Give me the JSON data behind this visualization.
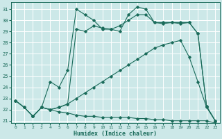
{
  "xlabel": "Humidex (Indice chaleur)",
  "bg_color": "#cce8e8",
  "grid_color": "#ffffff",
  "line_color": "#1a6b5a",
  "xlim": [
    -0.5,
    23.5
  ],
  "ylim": [
    20.8,
    31.6
  ],
  "yticks": [
    21,
    22,
    23,
    24,
    25,
    26,
    27,
    28,
    29,
    30,
    31
  ],
  "xticks": [
    0,
    1,
    2,
    3,
    4,
    5,
    6,
    7,
    8,
    9,
    10,
    11,
    12,
    13,
    14,
    15,
    16,
    17,
    18,
    19,
    20,
    21,
    22,
    23
  ],
  "series": [
    {
      "x": [
        0,
        1,
        2,
        3,
        4,
        5,
        6,
        7,
        8,
        9,
        10,
        11,
        12,
        13,
        14,
        15,
        16,
        17,
        18,
        19,
        20,
        21,
        22,
        23
      ],
      "y": [
        22.8,
        22.2,
        21.4,
        22.2,
        24.5,
        24.0,
        25.5,
        31.0,
        30.5,
        30.0,
        29.2,
        29.2,
        29.0,
        30.5,
        31.2,
        31.0,
        29.8,
        29.7,
        29.8,
        29.7,
        29.8,
        28.8,
        22.3,
        21.0
      ]
    },
    {
      "x": [
        2,
        3,
        4,
        5,
        6,
        7,
        8,
        9,
        10,
        11,
        12,
        13,
        14,
        15,
        16,
        17,
        18,
        19,
        20,
        21,
        22,
        23
      ],
      "y": [
        21.4,
        22.2,
        22.0,
        22.2,
        22.5,
        29.2,
        29.0,
        29.5,
        29.3,
        29.2,
        29.5,
        30.0,
        30.5,
        30.5,
        29.8,
        29.8,
        29.8,
        29.8,
        29.8,
        28.8,
        22.3,
        21.0
      ]
    },
    {
      "x": [
        0,
        1,
        2,
        3,
        4,
        5,
        6,
        7,
        8,
        9,
        10,
        11,
        12,
        13,
        14,
        15,
        16,
        17,
        18,
        19,
        20,
        21,
        22,
        23
      ],
      "y": [
        22.8,
        22.2,
        21.4,
        22.2,
        22.0,
        22.2,
        22.5,
        23.0,
        23.5,
        24.0,
        24.5,
        25.0,
        25.5,
        26.0,
        26.5,
        27.0,
        27.5,
        27.8,
        28.0,
        28.2,
        26.7,
        24.5,
        22.2,
        21.0
      ]
    },
    {
      "x": [
        0,
        1,
        2,
        3,
        4,
        5,
        6,
        7,
        8,
        9,
        10,
        11,
        12,
        13,
        14,
        15,
        16,
        17,
        18,
        19,
        20,
        21,
        22,
        23
      ],
      "y": [
        22.8,
        22.2,
        21.4,
        22.2,
        22.0,
        21.8,
        21.7,
        21.5,
        21.4,
        21.4,
        21.3,
        21.3,
        21.3,
        21.3,
        21.2,
        21.2,
        21.1,
        21.1,
        21.0,
        21.0,
        21.0,
        21.0,
        21.0,
        20.8
      ]
    }
  ]
}
